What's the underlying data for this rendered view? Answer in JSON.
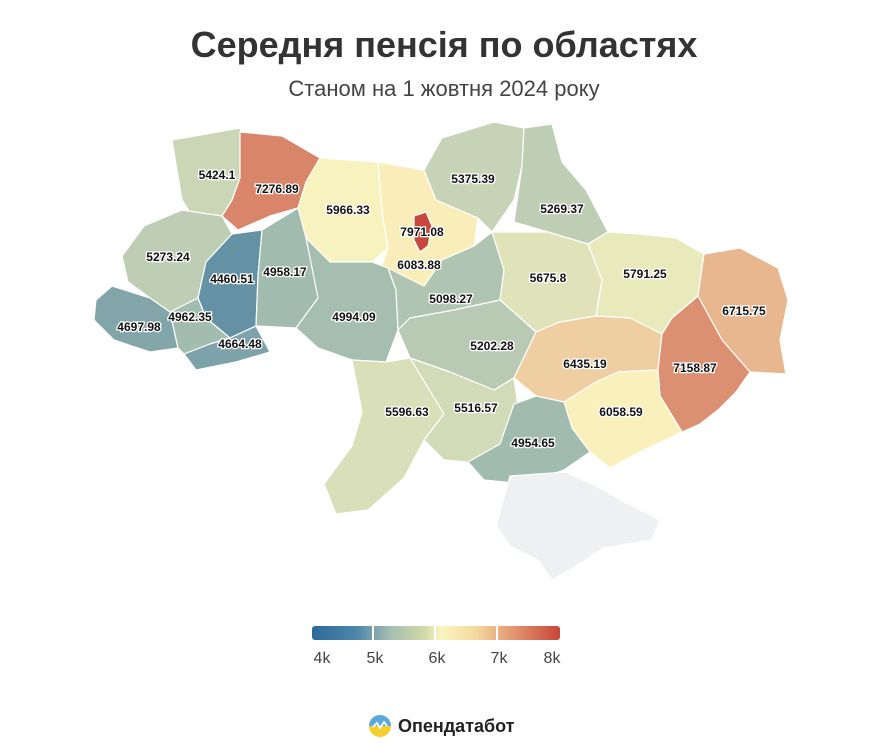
{
  "title": "Середня пенсія по областях",
  "subtitle": "Станом на 1 жовтня 2024 року",
  "brand": {
    "name": "Опендатабот",
    "logo_icon": "opendatabot-logo-icon"
  },
  "colors": {
    "low": "#2c6a9a",
    "mid_low": "#a7bfb0",
    "mid": "#fbf5bf",
    "high": "#c6463a",
    "no_data": "#eef0f2"
  },
  "legend": {
    "ticks": [
      "4k",
      "5k",
      "6k",
      "7k",
      "8k"
    ]
  },
  "chart_data": {
    "type": "choropleth",
    "title": "Середня пенсія по областях",
    "subtitle": "Станом на 1 жовтня 2024 року",
    "scale": {
      "min": 4000,
      "max": 8000
    },
    "regions": [
      {
        "id": "volyn",
        "value": "5424.1"
      },
      {
        "id": "rivne",
        "value": "7276.89"
      },
      {
        "id": "zhytomyr",
        "value": "5966.33"
      },
      {
        "id": "kyiv-oblast",
        "value": "6083.88"
      },
      {
        "id": "kyiv-city",
        "value": "7971.08"
      },
      {
        "id": "chernihiv",
        "value": "5375.39"
      },
      {
        "id": "sumy",
        "value": "5269.37"
      },
      {
        "id": "lviv",
        "value": "5273.24"
      },
      {
        "id": "ternopil",
        "value": "4460.51"
      },
      {
        "id": "khmelnytskyi",
        "value": "4958.17"
      },
      {
        "id": "zakarpattia",
        "value": "4697.98"
      },
      {
        "id": "ivano-frankivsk",
        "value": "4962.35"
      },
      {
        "id": "chernivtsi",
        "value": "4664.48"
      },
      {
        "id": "vinnytsia",
        "value": "4994.09"
      },
      {
        "id": "cherkasy",
        "value": "5098.27"
      },
      {
        "id": "poltava",
        "value": "5675.8"
      },
      {
        "id": "kharkiv",
        "value": "5791.25"
      },
      {
        "id": "luhansk",
        "value": "6715.75"
      },
      {
        "id": "kirovohrad",
        "value": "5202.28"
      },
      {
        "id": "dnipropetrovsk",
        "value": "6435.19"
      },
      {
        "id": "donetsk",
        "value": "7158.87"
      },
      {
        "id": "zaporizhzhia",
        "value": "6058.59"
      },
      {
        "id": "odesa",
        "value": "5596.63"
      },
      {
        "id": "mykolaiv",
        "value": "5516.57"
      },
      {
        "id": "kherson",
        "value": "4954.65"
      },
      {
        "id": "crimea",
        "value": null
      }
    ]
  }
}
